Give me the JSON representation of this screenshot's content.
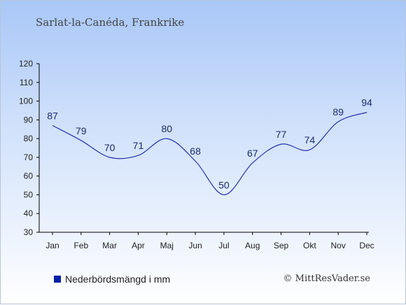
{
  "header": {
    "title": "Sarlat-la-Canéda, Frankrike"
  },
  "legend": {
    "label": "Nederbördsmängd i mm",
    "color": "#0020a8"
  },
  "credit": "© MittResVader.se",
  "chart_data": {
    "type": "line",
    "categories": [
      "Jan",
      "Feb",
      "Mar",
      "Apr",
      "Maj",
      "Jun",
      "Jul",
      "Aug",
      "Sep",
      "Okt",
      "Nov",
      "Dec"
    ],
    "series": [
      {
        "name": "Nederbördsmängd i mm",
        "values": [
          87,
          79,
          70,
          71,
          80,
          68,
          50,
          67,
          77,
          74,
          89,
          94
        ]
      }
    ],
    "y_ticks": [
      30,
      40,
      50,
      60,
      70,
      80,
      90,
      100,
      110,
      120
    ],
    "ylim": [
      30,
      120
    ],
    "line_color": "#2233aa",
    "grid": false
  }
}
